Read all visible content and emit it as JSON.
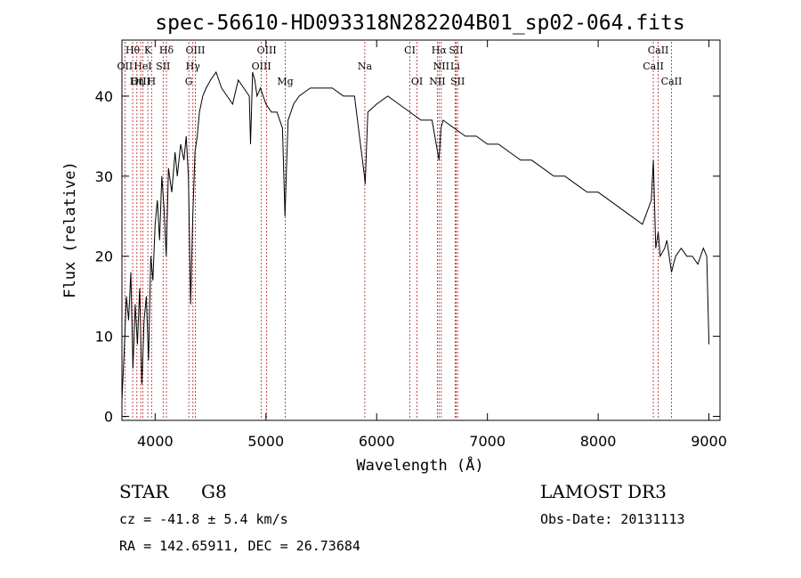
{
  "chart_data": {
    "type": "line",
    "title": "spec-56610-HD093318N282204B01_sp02-064.fits",
    "xlabel": "Wavelength (Å)",
    "ylabel": "Flux (relative)",
    "xlim": [
      3700,
      9100
    ],
    "ylim": [
      -0.5,
      47
    ],
    "x_ticks": [
      4000,
      5000,
      6000,
      7000,
      8000,
      9000
    ],
    "y_ticks": [
      0,
      10,
      20,
      30,
      40
    ],
    "grid": false,
    "line_color": "#000000",
    "marker_color": "#b22222",
    "series": [
      {
        "x": [
          3700,
          3720,
          3740,
          3760,
          3780,
          3800,
          3820,
          3840,
          3860,
          3880,
          3900,
          3920,
          3940,
          3960,
          3980,
          4000,
          4020,
          4040,
          4060,
          4080,
          4100,
          4120,
          4150,
          4180,
          4200,
          4230,
          4260,
          4280,
          4300,
          4320,
          4340,
          4360,
          4380,
          4400,
          4430,
          4460,
          4500,
          4550,
          4600,
          4650,
          4700,
          4750,
          4800,
          4850,
          4861,
          4880,
          4900,
          4920,
          4950,
          5000,
          5050,
          5100,
          5150,
          5172,
          5183,
          5200,
          5250,
          5300,
          5400,
          5500,
          5600,
          5700,
          5800,
          5890,
          5896,
          5920,
          6000,
          6100,
          6200,
          6300,
          6400,
          6500,
          6563,
          6580,
          6600,
          6700,
          6800,
          6900,
          7000,
          7100,
          7200,
          7300,
          7400,
          7500,
          7600,
          7700,
          7800,
          7900,
          8000,
          8100,
          8200,
          8300,
          8400,
          8480,
          8498,
          8520,
          8542,
          8560,
          8600,
          8620,
          8662,
          8680,
          8700,
          8750,
          8800,
          8850,
          8900,
          8950,
          8980,
          9000
        ],
        "y": [
          2,
          8,
          15,
          12,
          18,
          6,
          14,
          9,
          16,
          4,
          12,
          15,
          7,
          20,
          17,
          24,
          27,
          22,
          30,
          26,
          20,
          31,
          28,
          33,
          30,
          34,
          32,
          35,
          30,
          14,
          25,
          33,
          35,
          38,
          40,
          41,
          42,
          43,
          41,
          40,
          39,
          42,
          41,
          40,
          34,
          43,
          42,
          40,
          41,
          39,
          38,
          38,
          36,
          25,
          30,
          37,
          39,
          40,
          41,
          41,
          41,
          40,
          40,
          30,
          29,
          38,
          39,
          40,
          39,
          38,
          37,
          37,
          32,
          36,
          37,
          36,
          35,
          35,
          34,
          34,
          33,
          32,
          32,
          31,
          30,
          30,
          29,
          28,
          28,
          27,
          26,
          25,
          24,
          27,
          32,
          21,
          23,
          20,
          21,
          22,
          18,
          19,
          20,
          21,
          20,
          20,
          19,
          21,
          20,
          9
        ]
      }
    ],
    "line_markers": [
      {
        "label": "Hθ",
        "x": 3797,
        "row": 0
      },
      {
        "label": "K",
        "x": 3934,
        "row": 0
      },
      {
        "label": "Hδ",
        "x": 4102,
        "row": 0
      },
      {
        "label": "OIII",
        "x": 4363,
        "row": 0
      },
      {
        "label": "OIII",
        "x": 5007,
        "row": 0
      },
      {
        "label": "CI",
        "x": 6300,
        "row": 0
      },
      {
        "label": "Hα",
        "x": 6563,
        "row": 0
      },
      {
        "label": "SII",
        "x": 6717,
        "row": 0
      },
      {
        "label": "CaII",
        "x": 8542,
        "row": 0
      },
      {
        "label": "OII",
        "x": 3727,
        "row": 1
      },
      {
        "label": "HeI",
        "x": 3889,
        "row": 1
      },
      {
        "label": "SII",
        "x": 4072,
        "row": 1
      },
      {
        "label": "Hγ",
        "x": 4341,
        "row": 1
      },
      {
        "label": "OIII",
        "x": 4959,
        "row": 1
      },
      {
        "label": "Na",
        "x": 5893,
        "row": 1
      },
      {
        "label": "NII",
        "x": 6583,
        "row": 1
      },
      {
        "label": "Li",
        "x": 6708,
        "row": 1
      },
      {
        "label": "CaII",
        "x": 8498,
        "row": 1
      },
      {
        "label": "OIII",
        "x": 3869,
        "row": 2
      },
      {
        "label": "Hη",
        "x": 3835,
        "row": 2
      },
      {
        "label": "H",
        "x": 3968,
        "row": 2
      },
      {
        "label": "G",
        "x": 4304,
        "row": 2
      },
      {
        "label": "Mg",
        "x": 5175,
        "row": 2
      },
      {
        "label": "OI",
        "x": 6364,
        "row": 2
      },
      {
        "label": "NII",
        "x": 6548,
        "row": 2
      },
      {
        "label": "SII",
        "x": 6731,
        "row": 2
      },
      {
        "label": "CaII",
        "x": 8662,
        "row": 2
      }
    ]
  },
  "info": {
    "object_class": "STAR",
    "subclass": "G8",
    "survey": "LAMOST DR3",
    "redshift": "cz = -41.8 ± 5.4 km/s",
    "obs_date": "Obs-Date: 20131113",
    "coords": "RA = 142.65911, DEC =  26.73684"
  }
}
